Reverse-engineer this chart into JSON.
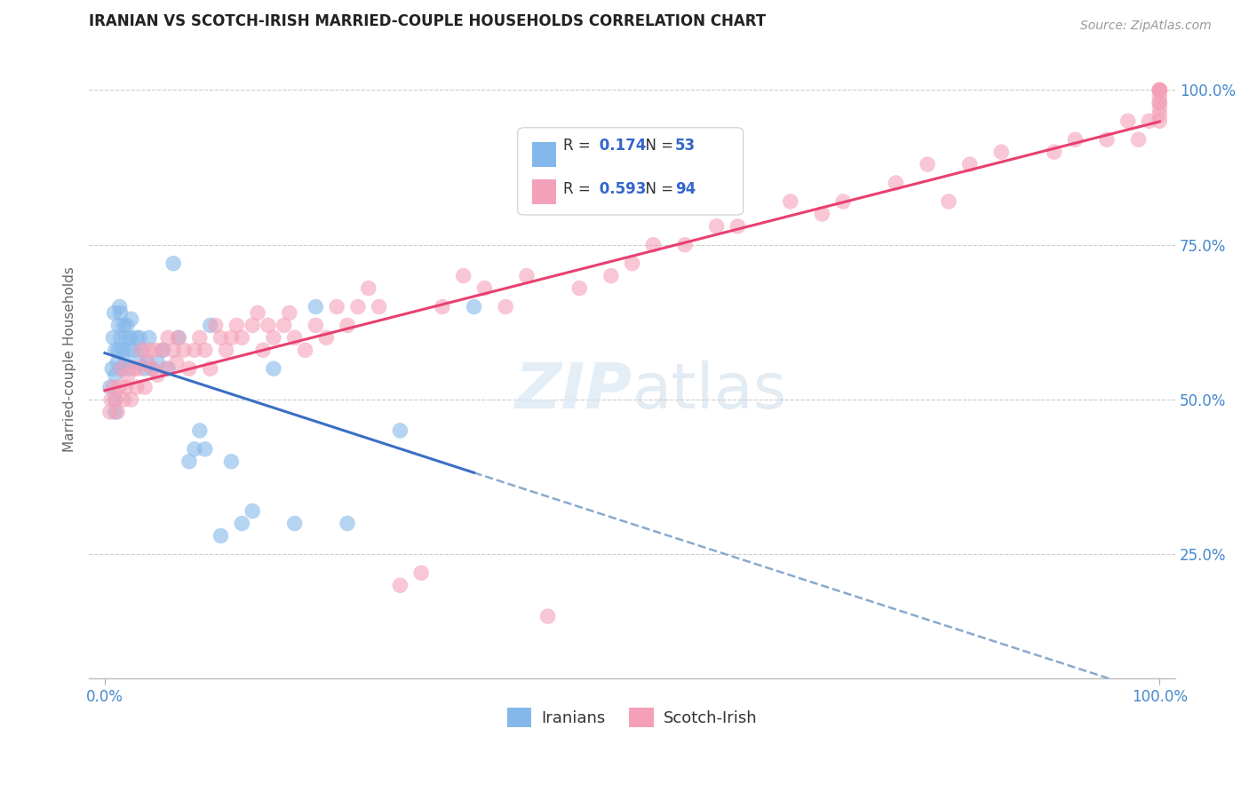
{
  "title": "IRANIAN VS SCOTCH-IRISH MARRIED-COUPLE HOUSEHOLDS CORRELATION CHART",
  "source": "Source: ZipAtlas.com",
  "ylabel": "Married-couple Households",
  "legend_iranians": "Iranians",
  "legend_scotch_irish": "Scotch-Irish",
  "R_iranian": 0.174,
  "N_iranian": 53,
  "R_scotch_irish": 0.593,
  "N_scotch_irish": 94,
  "color_iranian": "#85B8EA",
  "color_scotch_irish": "#F4A0B8",
  "color_trend_iranian": "#3A6FC4",
  "color_trend_scotch_irish": "#E84070",
  "ytick_labels": [
    "25.0%",
    "50.0%",
    "75.0%",
    "100.0%"
  ],
  "ytick_values": [
    0.25,
    0.5,
    0.75,
    1.0
  ],
  "iranian_x": [
    0.005,
    0.007,
    0.008,
    0.009,
    0.01,
    0.01,
    0.01,
    0.01,
    0.012,
    0.013,
    0.013,
    0.014,
    0.015,
    0.015,
    0.016,
    0.017,
    0.018,
    0.019,
    0.02,
    0.021,
    0.022,
    0.023,
    0.024,
    0.025,
    0.027,
    0.03,
    0.032,
    0.033,
    0.035,
    0.038,
    0.04,
    0.042,
    0.045,
    0.05,
    0.055,
    0.06,
    0.065,
    0.07,
    0.08,
    0.085,
    0.09,
    0.095,
    0.1,
    0.11,
    0.12,
    0.13,
    0.14,
    0.16,
    0.18,
    0.2,
    0.23,
    0.28,
    0.35
  ],
  "iranian_y": [
    0.52,
    0.55,
    0.6,
    0.64,
    0.48,
    0.5,
    0.54,
    0.58,
    0.56,
    0.58,
    0.62,
    0.65,
    0.6,
    0.64,
    0.55,
    0.58,
    0.62,
    0.56,
    0.6,
    0.62,
    0.55,
    0.58,
    0.6,
    0.63,
    0.58,
    0.6,
    0.56,
    0.6,
    0.58,
    0.55,
    0.56,
    0.6,
    0.55,
    0.56,
    0.58,
    0.55,
    0.72,
    0.6,
    0.4,
    0.42,
    0.45,
    0.42,
    0.62,
    0.28,
    0.4,
    0.3,
    0.32,
    0.55,
    0.3,
    0.65,
    0.3,
    0.45,
    0.65
  ],
  "scotch_x": [
    0.005,
    0.006,
    0.008,
    0.01,
    0.012,
    0.014,
    0.016,
    0.018,
    0.02,
    0.022,
    0.025,
    0.028,
    0.03,
    0.032,
    0.035,
    0.038,
    0.04,
    0.042,
    0.045,
    0.048,
    0.05,
    0.055,
    0.058,
    0.06,
    0.065,
    0.068,
    0.07,
    0.075,
    0.08,
    0.085,
    0.09,
    0.095,
    0.1,
    0.105,
    0.11,
    0.115,
    0.12,
    0.125,
    0.13,
    0.14,
    0.145,
    0.15,
    0.155,
    0.16,
    0.17,
    0.175,
    0.18,
    0.19,
    0.2,
    0.21,
    0.22,
    0.23,
    0.24,
    0.25,
    0.26,
    0.28,
    0.3,
    0.32,
    0.34,
    0.36,
    0.38,
    0.4,
    0.42,
    0.45,
    0.48,
    0.5,
    0.52,
    0.55,
    0.58,
    0.6,
    0.65,
    0.68,
    0.7,
    0.75,
    0.78,
    0.8,
    0.82,
    0.85,
    0.9,
    0.92,
    0.95,
    0.97,
    0.98,
    0.99,
    1.0,
    1.0,
    1.0,
    1.0,
    1.0,
    1.0,
    1.0,
    1.0,
    1.0,
    1.0
  ],
  "scotch_y": [
    0.48,
    0.5,
    0.52,
    0.5,
    0.48,
    0.52,
    0.55,
    0.5,
    0.52,
    0.54,
    0.5,
    0.55,
    0.52,
    0.55,
    0.58,
    0.52,
    0.56,
    0.58,
    0.55,
    0.58,
    0.54,
    0.58,
    0.55,
    0.6,
    0.58,
    0.56,
    0.6,
    0.58,
    0.55,
    0.58,
    0.6,
    0.58,
    0.55,
    0.62,
    0.6,
    0.58,
    0.6,
    0.62,
    0.6,
    0.62,
    0.64,
    0.58,
    0.62,
    0.6,
    0.62,
    0.64,
    0.6,
    0.58,
    0.62,
    0.6,
    0.65,
    0.62,
    0.65,
    0.68,
    0.65,
    0.2,
    0.22,
    0.65,
    0.7,
    0.68,
    0.65,
    0.7,
    0.15,
    0.68,
    0.7,
    0.72,
    0.75,
    0.75,
    0.78,
    0.78,
    0.82,
    0.8,
    0.82,
    0.85,
    0.88,
    0.82,
    0.88,
    0.9,
    0.9,
    0.92,
    0.92,
    0.95,
    0.92,
    0.95,
    0.95,
    0.96,
    0.98,
    0.97,
    0.98,
    0.99,
    1.0,
    1.0,
    1.0,
    1.0
  ]
}
